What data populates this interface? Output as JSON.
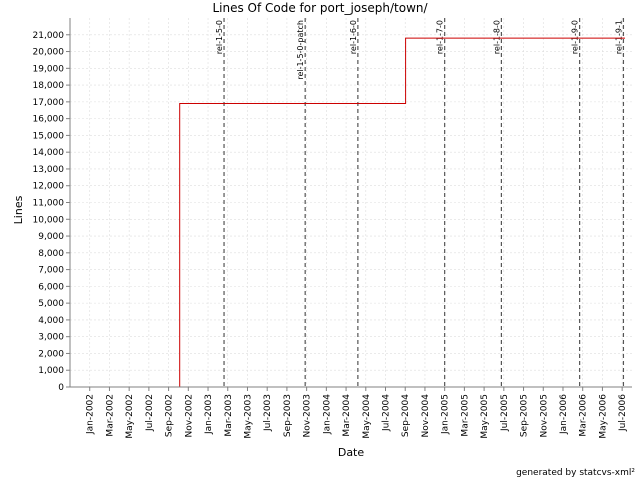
{
  "chart_data": {
    "type": "line",
    "title": "Lines Of Code for port_joseph/town/",
    "xlabel": "Date",
    "ylabel": "Lines",
    "ylim": [
      0,
      22000
    ],
    "xlim": [
      "2001-11",
      "2006-08"
    ],
    "y_ticks": [
      0,
      1000,
      2000,
      3000,
      4000,
      5000,
      6000,
      7000,
      8000,
      9000,
      10000,
      11000,
      12000,
      13000,
      14000,
      15000,
      16000,
      17000,
      18000,
      19000,
      20000,
      21000
    ],
    "y_tick_labels": [
      "0",
      "1,000",
      "2,000",
      "3,000",
      "4,000",
      "5,000",
      "6,000",
      "7,000",
      "8,000",
      "9,000",
      "10,000",
      "11,000",
      "12,000",
      "13,000",
      "14,000",
      "15,000",
      "16,000",
      "17,000",
      "18,000",
      "19,000",
      "20,000",
      "21,000"
    ],
    "x_ticks": [
      "2002-01",
      "2002-03",
      "2002-05",
      "2002-07",
      "2002-09",
      "2002-11",
      "2003-01",
      "2003-03",
      "2003-05",
      "2003-07",
      "2003-09",
      "2003-11",
      "2004-01",
      "2004-03",
      "2004-05",
      "2004-07",
      "2004-09",
      "2004-11",
      "2005-01",
      "2005-03",
      "2005-05",
      "2005-07",
      "2005-09",
      "2005-11",
      "2006-01",
      "2006-03",
      "2006-05",
      "2006-07"
    ],
    "x_tick_labels": [
      "Jan-2002",
      "Mar-2002",
      "May-2002",
      "Jul-2002",
      "Sep-2002",
      "Nov-2002",
      "Jan-2003",
      "Mar-2003",
      "May-2003",
      "Jul-2003",
      "Sep-2003",
      "Nov-2003",
      "Jan-2004",
      "Mar-2004",
      "May-2004",
      "Jul-2004",
      "Sep-2004",
      "Nov-2004",
      "Jan-2005",
      "Mar-2005",
      "May-2005",
      "Jul-2005",
      "Sep-2005",
      "Nov-2005",
      "Jan-2006",
      "Mar-2006",
      "May-2006",
      "Jul-2006"
    ],
    "grid": true,
    "series": [
      {
        "color": "#cc0000",
        "step": true,
        "points": [
          {
            "x": "2002-01-06",
            "y": 0
          },
          {
            "x": "2002-10-05",
            "y": 0
          },
          {
            "x": "2002-10-05",
            "y": 16900
          },
          {
            "x": "2004-09-02",
            "y": 16900
          },
          {
            "x": "2004-09-02",
            "y": 20800
          },
          {
            "x": "2006-07-10",
            "y": 20800
          }
        ]
      }
    ],
    "markers": [
      {
        "label": "rel-1-5-0",
        "x": "2003-02-20"
      },
      {
        "label": "rel-1-5-0-patch",
        "x": "2003-10-27"
      },
      {
        "label": "rel-1-6-0",
        "x": "2004-04-07"
      },
      {
        "label": "rel-1-7-0",
        "x": "2005-01-01"
      },
      {
        "label": "rel-1-8-0",
        "x": "2005-06-24"
      },
      {
        "label": "rel-1-9-0",
        "x": "2006-02-22"
      },
      {
        "label": "rel-1-9-1",
        "x": "2006-07-05"
      }
    ]
  },
  "footer": {
    "credit": "generated by statcvs-xml²"
  }
}
